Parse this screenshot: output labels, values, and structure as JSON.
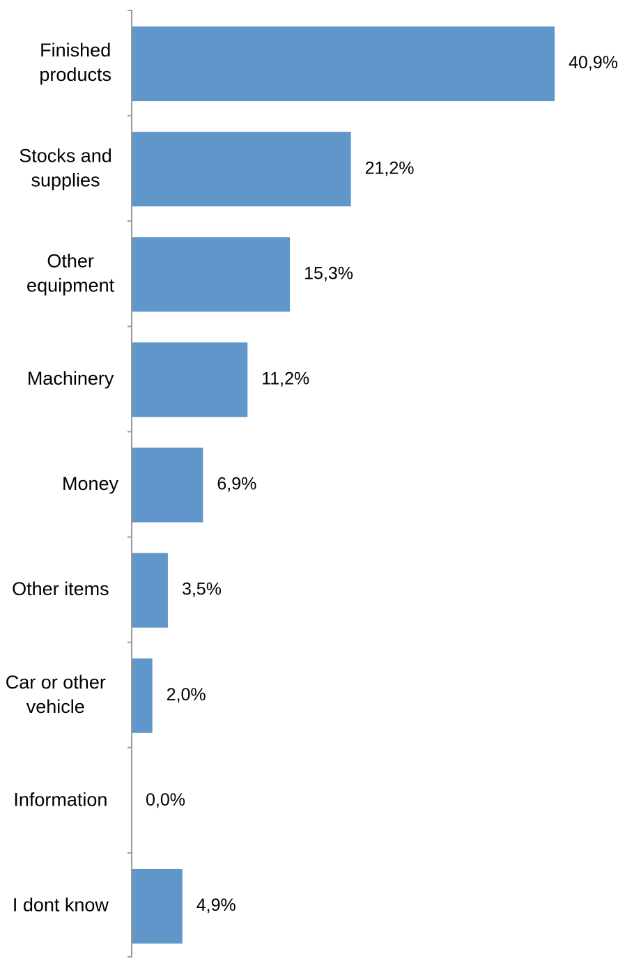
{
  "chart_data": {
    "type": "bar",
    "orientation": "horizontal",
    "categories": [
      [
        "Finished",
        "products"
      ],
      [
        "Stocks and",
        "supplies"
      ],
      [
        "Other",
        "equipment"
      ],
      [
        "Machinery"
      ],
      [
        "Money"
      ],
      [
        "Other items"
      ],
      [
        "Car or other",
        "vehicle"
      ],
      [
        "Information"
      ],
      [
        "I dont know"
      ]
    ],
    "values": [
      40.9,
      21.2,
      15.3,
      11.2,
      6.9,
      3.5,
      2.0,
      0.0,
      4.9
    ],
    "value_labels": [
      "40,9%",
      "21,2%",
      "15,3%",
      "11,2%",
      "6,9%",
      "3,5%",
      "2,0%",
      "0,0%",
      "4,9%"
    ],
    "unit": "%",
    "title": "",
    "xlabel": "",
    "ylabel": "",
    "xlim": [
      0,
      45
    ],
    "grid": false,
    "legend": "none",
    "colors": {
      "bar": "#6096c9",
      "axis": "#9a9a9a",
      "text": "#000000",
      "background": "#ffffff"
    }
  }
}
